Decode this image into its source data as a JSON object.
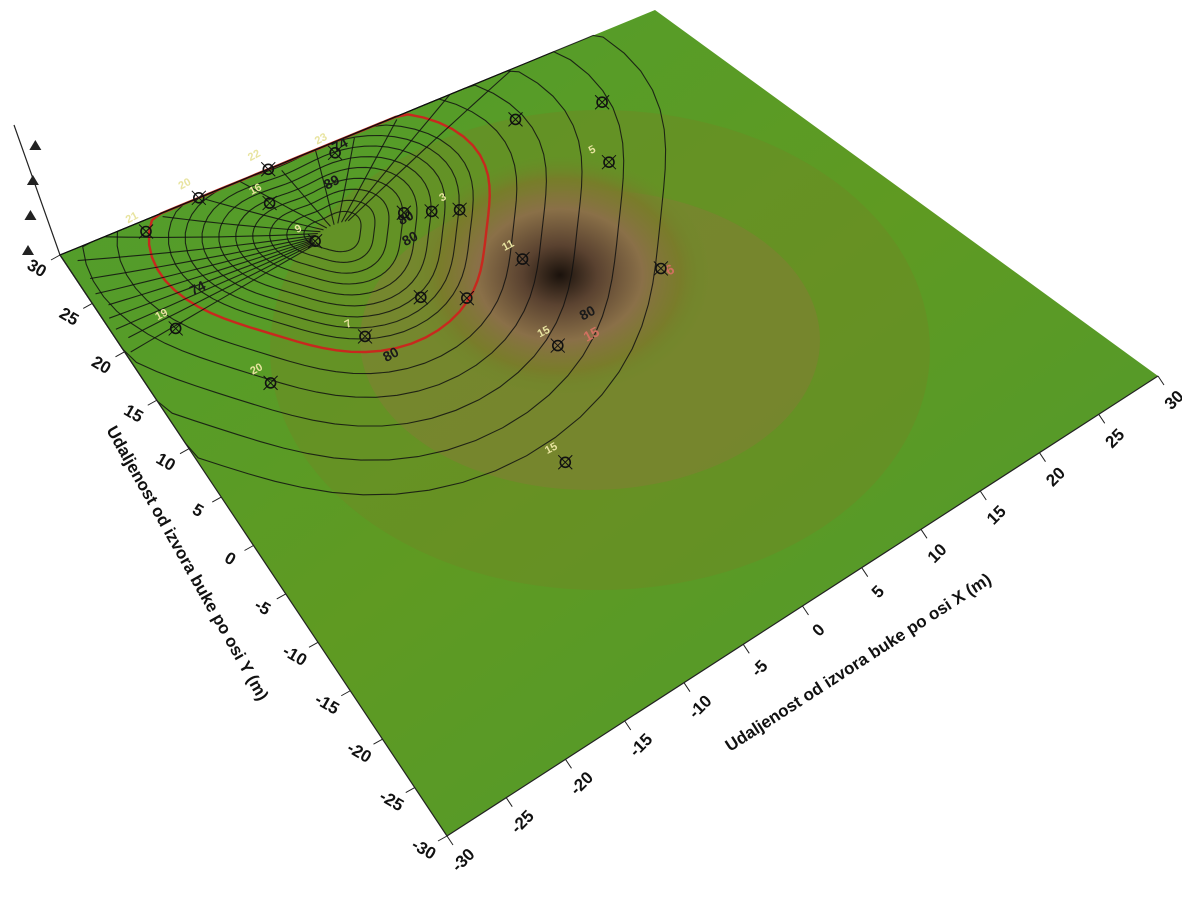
{
  "chart_data": {
    "type": "surface-3d-contour",
    "xlabel": "Udaljenost od izvora buke po osi X (m)",
    "ylabel": "Udaljenost od izvora buke po osi Y (m)",
    "xlim": [
      -30,
      30
    ],
    "ylim": [
      -30,
      30
    ],
    "x_ticks": [
      "-30",
      "-25",
      "-20",
      "-15",
      "-10",
      "-5",
      "0",
      "5",
      "10",
      "15",
      "20",
      "25",
      "30"
    ],
    "y_ticks": [
      "-30",
      "-25",
      "-20",
      "-15",
      "-10",
      "-5",
      "0",
      "5",
      "10",
      "15",
      "20",
      "25",
      "30"
    ],
    "peak": {
      "x": -8,
      "y": 22
    },
    "highlight_contour_level": 80,
    "colors": {
      "surface_low": "#4f9a2c",
      "surface_high": "#3a2a1a",
      "contour_line": "#111111",
      "highlight_contour": "#c8281e",
      "marker": "#111111"
    },
    "contour_labels": [
      "74",
      "74",
      "80",
      "80",
      "80",
      "89",
      "80",
      "6",
      "15"
    ],
    "measurement_points": [
      {
        "x": -22,
        "y": 29,
        "label": "21"
      },
      {
        "x": -16,
        "y": 30,
        "label": "20"
      },
      {
        "x": -9,
        "y": 30,
        "label": "22"
      },
      {
        "x": -3,
        "y": 29,
        "label": "23"
      },
      {
        "x": -11,
        "y": 27,
        "label": "16"
      },
      {
        "x": -25,
        "y": 20,
        "label": "19"
      },
      {
        "x": -10,
        "y": 22,
        "label": "9"
      },
      {
        "x": -2,
        "y": 21,
        "label": ""
      },
      {
        "x": 0,
        "y": 20,
        "label": ""
      },
      {
        "x": 2,
        "y": 19,
        "label": "3"
      },
      {
        "x": 12,
        "y": 25,
        "label": ""
      },
      {
        "x": 19,
        "y": 23,
        "label": ""
      },
      {
        "x": -21,
        "y": 12,
        "label": "20"
      },
      {
        "x": -12,
        "y": 12,
        "label": "7"
      },
      {
        "x": -6,
        "y": 13,
        "label": ""
      },
      {
        "x": -3,
        "y": 11,
        "label": ""
      },
      {
        "x": 3,
        "y": 12,
        "label": "11"
      },
      {
        "x": 15,
        "y": 17,
        "label": "5"
      },
      {
        "x": 0,
        "y": 3,
        "label": "15"
      },
      {
        "x": 11,
        "y": 5,
        "label": ""
      },
      {
        "x": -6,
        "y": -7,
        "label": "15"
      }
    ]
  }
}
